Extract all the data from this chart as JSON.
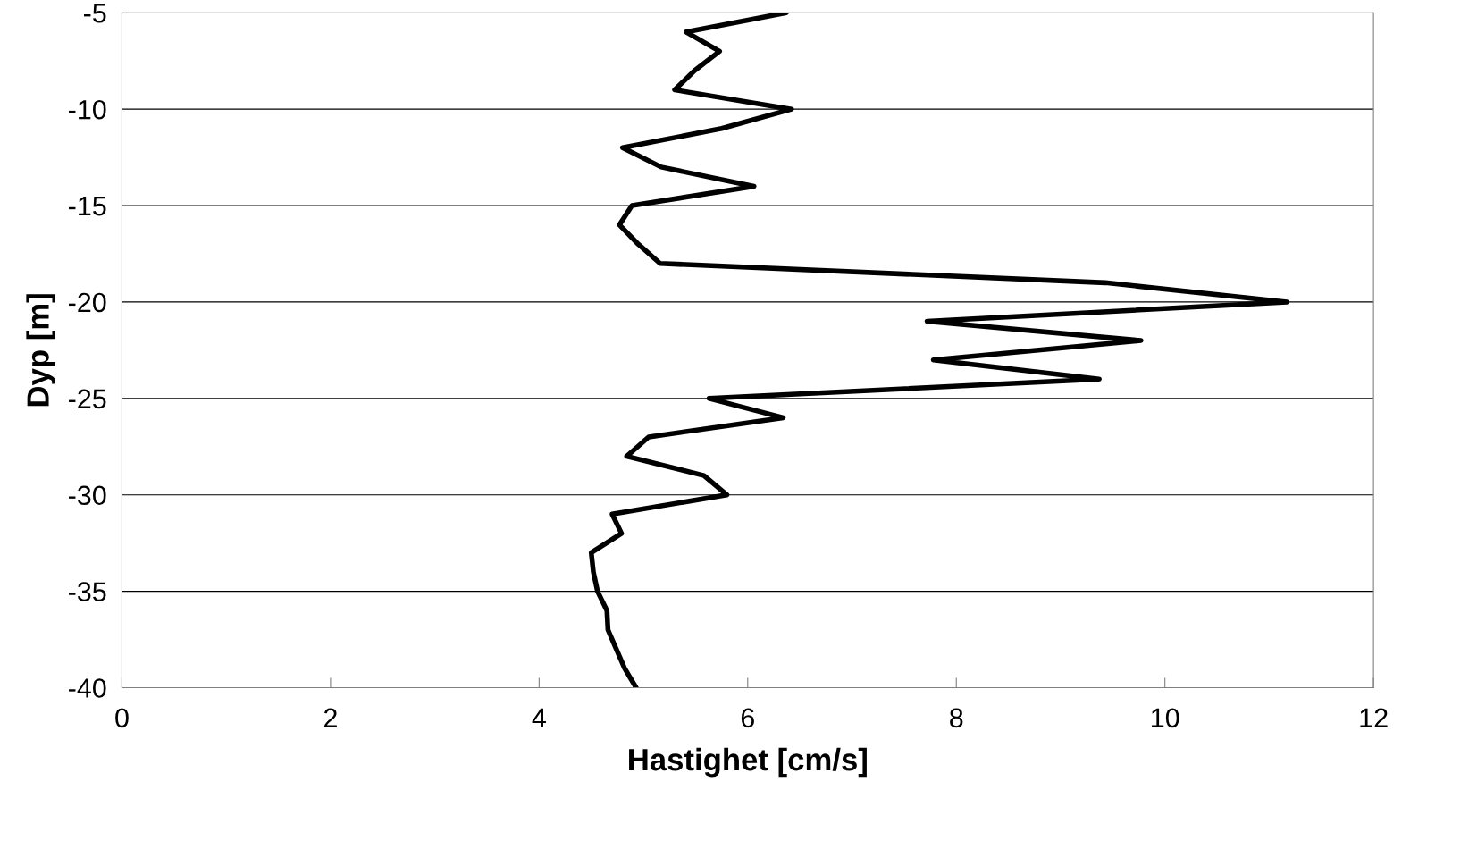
{
  "chart_data": {
    "type": "line",
    "xlabel": "Hastighet [cm/s]",
    "ylabel": "Dyp [m]",
    "xlim": [
      0,
      12
    ],
    "xticks": [
      0,
      2,
      4,
      6,
      8,
      10,
      12
    ],
    "ylim": [
      -40,
      -5
    ],
    "yticks": [
      -40,
      -35,
      -30,
      -25,
      -20,
      -15,
      -10,
      -5
    ],
    "grid": "y",
    "marker": "none",
    "line_style": "solid",
    "series": [
      {
        "color": "#000000",
        "x": [
          6.37,
          5.41,
          5.73,
          5.49,
          5.3,
          6.42,
          5.75,
          4.8,
          5.17,
          6.06,
          4.89,
          4.77,
          4.95,
          5.16,
          9.43,
          11.17,
          7.72,
          9.77,
          7.78,
          9.37,
          5.63,
          6.34,
          5.05,
          4.84,
          5.58,
          5.8,
          4.7,
          4.79,
          4.5,
          4.52,
          4.56,
          4.65,
          4.66,
          4.74,
          4.82,
          4.93
        ],
        "values": [
          -5,
          -6,
          -7,
          -8,
          -9,
          -10,
          -11,
          -12,
          -13,
          -14,
          -15,
          -16,
          -17,
          -18,
          -19,
          -20,
          -21,
          -22,
          -23,
          -24,
          -25,
          -26,
          -27,
          -28,
          -29,
          -30,
          -31,
          -32,
          -33,
          -34,
          -35,
          -36,
          -37,
          -38,
          -39,
          -40
        ]
      }
    ]
  }
}
